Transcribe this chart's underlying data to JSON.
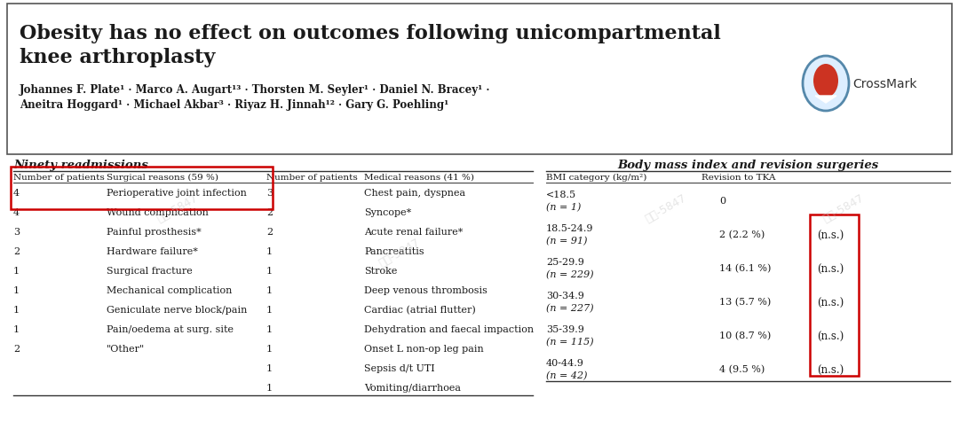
{
  "title": "Obesity has no effect on outcomes following unicompartmental\nknee arthroplasty",
  "authors_line1": "Johannes F. Plate¹ · Marco A. Augart¹³ · Thorsten M. Seyler¹ · Daniel N. Bracey¹ ·",
  "authors_line2": "Aneitra Hoggard¹ · Michael Akbar³ · Riyaz H. Jinnah¹² · Gary G. Poehling¹",
  "left_table_title": "Ninety readmissions",
  "left_col_headers": [
    "Number of patients",
    "Surgical reasons (59 %)",
    "Number of patients",
    "Medical reasons (41 %)"
  ],
  "left_table_data": [
    [
      "4",
      "Perioperative joint infection",
      "3",
      "Chest pain, dyspnea"
    ],
    [
      "4",
      "Wound complication",
      "2",
      "Syncope*"
    ],
    [
      "3",
      "Painful prosthesis*",
      "2",
      "Acute renal failure*"
    ],
    [
      "2",
      "Hardware failure*",
      "1",
      "Pancreatitis"
    ],
    [
      "1",
      "Surgical fracture",
      "1",
      "Stroke"
    ],
    [
      "1",
      "Mechanical complication",
      "1",
      "Deep venous thrombosis"
    ],
    [
      "1",
      "Geniculate nerve block/pain",
      "1",
      "Cardiac (atrial flutter)"
    ],
    [
      "1",
      "Pain/oedema at surg. site",
      "1",
      "Dehydration and faecal impaction"
    ],
    [
      "2",
      "\"Other\"",
      "1",
      "Onset L non-op leg pain"
    ],
    [
      "",
      "",
      "1",
      "Sepsis d/t UTI"
    ],
    [
      "",
      "",
      "1",
      "Vomiting/diarrhoea"
    ]
  ],
  "right_table_title": "Body mass index and revision surgeries",
  "right_col_headers": [
    "BMI category (kg/m²)",
    "Revision to TKA",
    ""
  ],
  "right_table_data": [
    [
      "<18.5\n(n = 1)",
      "0",
      ""
    ],
    [
      "18.5-24.9\n(n = 91)",
      "2 (2.2 %)",
      "(n.s.)"
    ],
    [
      "25-29.9\n(n = 229)",
      "14 (6.1 %)",
      "(n.s.)"
    ],
    [
      "30-34.9\n(n = 227)",
      "13 (5.7 %)",
      "(n.s.)"
    ],
    [
      "35-39.9\n(n = 115)",
      "10 (8.7 %)",
      "(n.s.)"
    ],
    [
      "40-44.9\n(n = 42)",
      "4 (9.5 %)",
      "(n.s.)"
    ]
  ],
  "bg_color": "#ffffff",
  "text_color": "#1a1a1a",
  "header_border_color": "#333333",
  "red_box_color": "#cc0000"
}
